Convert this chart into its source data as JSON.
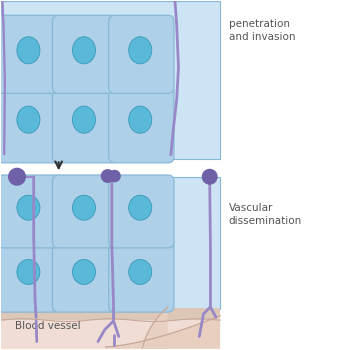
{
  "bg_color": "#ffffff",
  "cell_fill_light": "#c8dff0",
  "cell_fill": "#aed0e8",
  "cell_edge": "#88b8d8",
  "nucleus_fill": "#5ab8d8",
  "nucleus_edge": "#3a9ab8",
  "hyphae_color": "#9888c8",
  "hyphae_lw": 2.0,
  "spore_color": "#7060a8",
  "vessel_fill": "#f0e0d8",
  "vessel_border_fill": "#e8c8b8",
  "vessel_lumen_fill": "#f8f0e8",
  "basement_fill": "#e0c8b8",
  "label_color": "#555555",
  "arrow_color": "#333333",
  "text_penetration": "penetration\nand invasion",
  "text_vascular": "Vascular\ndissemination",
  "text_blood": "Blood vessel"
}
